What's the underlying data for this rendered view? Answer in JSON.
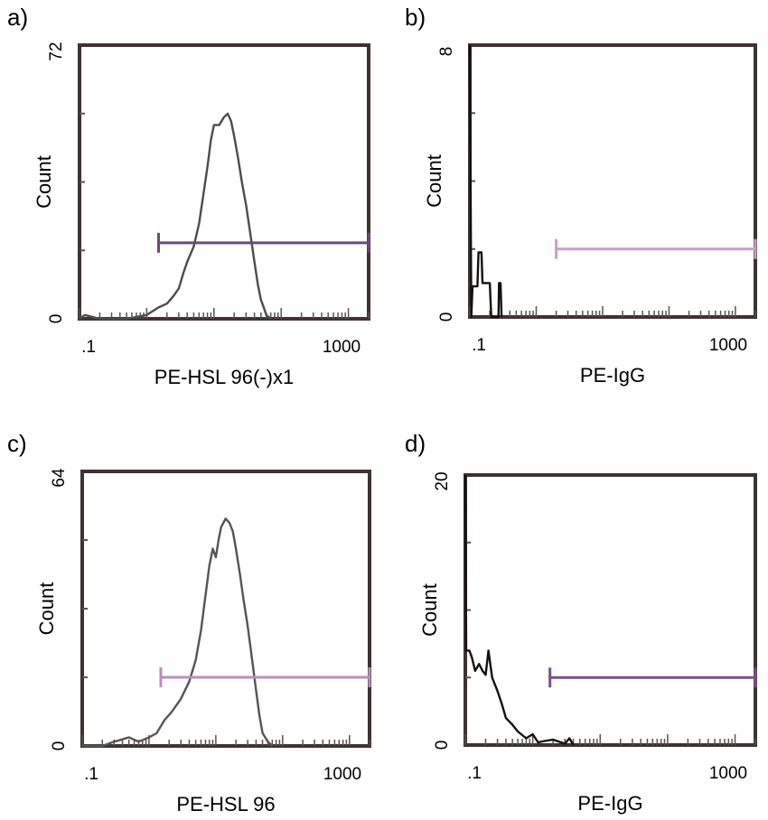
{
  "chart_data": [
    {
      "panel": "a)",
      "type": "histogram",
      "xlabel": "PE-HSL 96(-)x1",
      "ylabel": "Count",
      "x_scale": "log",
      "x_tick_labels": [
        ".1",
        "1000"
      ],
      "y_tick_labels": [
        "0",
        "72"
      ],
      "ylim": [
        0,
        72
      ],
      "gate": {
        "x": [
          1.5,
          2000
        ],
        "y": 20,
        "color": "#6b4a78"
      },
      "hist_color": "#4d4d4d",
      "series": [
        {
          "points": [
            [
              0.1,
              0
            ],
            [
              0.12,
              1
            ],
            [
              0.2,
              0
            ],
            [
              0.5,
              0
            ],
            [
              1,
              1
            ],
            [
              1.5,
              3
            ],
            [
              2,
              4
            ],
            [
              2.5,
              6
            ],
            [
              3,
              8
            ],
            [
              3.5,
              12
            ],
            [
              4,
              15
            ],
            [
              5,
              19
            ],
            [
              6,
              25
            ],
            [
              7,
              33
            ],
            [
              8,
              40
            ],
            [
              9,
              47
            ],
            [
              10,
              51
            ],
            [
              12,
              51
            ],
            [
              14,
              53
            ],
            [
              16,
              54
            ],
            [
              18,
              52
            ],
            [
              20,
              48
            ],
            [
              23,
              42
            ],
            [
              26,
              36
            ],
            [
              30,
              30
            ],
            [
              35,
              22
            ],
            [
              40,
              15
            ],
            [
              45,
              9
            ],
            [
              50,
              5
            ],
            [
              55,
              3
            ],
            [
              60,
              1
            ],
            [
              70,
              0
            ]
          ]
        }
      ]
    },
    {
      "panel": "b)",
      "type": "histogram",
      "xlabel": "PE-IgG",
      "ylabel": "Count",
      "x_scale": "log",
      "x_tick_labels": [
        ".1",
        "1000"
      ],
      "y_tick_labels": [
        "0",
        "8"
      ],
      "ylim": [
        0,
        8
      ],
      "gate": {
        "x": [
          2,
          2000
        ],
        "y": 2,
        "color": "#c99fc6"
      },
      "hist_color": "#111111",
      "series": [
        {
          "points": [
            [
              0.1,
              8
            ],
            [
              0.105,
              0
            ],
            [
              0.11,
              0.9
            ],
            [
              0.13,
              0.9
            ],
            [
              0.135,
              1.9
            ],
            [
              0.15,
              1.9
            ],
            [
              0.155,
              1
            ],
            [
              0.2,
              1
            ],
            [
              0.21,
              0
            ],
            [
              0.27,
              0
            ],
            [
              0.275,
              1
            ],
            [
              0.29,
              1
            ],
            [
              0.3,
              0
            ]
          ]
        }
      ]
    },
    {
      "panel": "c)",
      "type": "histogram",
      "xlabel": "PE-HSL 96",
      "ylabel": "Count",
      "x_scale": "log",
      "x_tick_labels": [
        ".1",
        "1000"
      ],
      "y_tick_labels": [
        "0",
        "64"
      ],
      "ylim": [
        0,
        64
      ],
      "gate": {
        "x": [
          1.5,
          2000
        ],
        "y": 16,
        "color": "#b990b8"
      },
      "hist_color": "#555555",
      "series": [
        {
          "points": [
            [
              0.1,
              0
            ],
            [
              0.2,
              0
            ],
            [
              0.3,
              1
            ],
            [
              0.5,
              2
            ],
            [
              0.7,
              1
            ],
            [
              1,
              2
            ],
            [
              1.3,
              3
            ],
            [
              1.7,
              6
            ],
            [
              2.2,
              8
            ],
            [
              3,
              11
            ],
            [
              4,
              15
            ],
            [
              5,
              20
            ],
            [
              6,
              27
            ],
            [
              7,
              35
            ],
            [
              8,
              42
            ],
            [
              9,
              46
            ],
            [
              10,
              44
            ],
            [
              11,
              48
            ],
            [
              12,
              51
            ],
            [
              14,
              53
            ],
            [
              16,
              52
            ],
            [
              18,
              50
            ],
            [
              20,
              46
            ],
            [
              23,
              40
            ],
            [
              26,
              34
            ],
            [
              30,
              28
            ],
            [
              35,
              20
            ],
            [
              40,
              13
            ],
            [
              45,
              7
            ],
            [
              50,
              3
            ],
            [
              60,
              1
            ],
            [
              70,
              0
            ]
          ]
        }
      ]
    },
    {
      "panel": "d)",
      "type": "histogram",
      "xlabel": "PE-IgG",
      "ylabel": "Count",
      "x_scale": "log",
      "x_tick_labels": [
        ".1",
        "1000"
      ],
      "y_tick_labels": [
        "0",
        "20"
      ],
      "ylim": [
        0,
        20
      ],
      "gate": {
        "x": [
          1.8,
          2000
        ],
        "y": 5,
        "color": "#7a4f8a"
      },
      "hist_color": "#111111",
      "series": [
        {
          "points": [
            [
              0.1,
              20
            ],
            [
              0.103,
              7
            ],
            [
              0.115,
              7
            ],
            [
              0.125,
              6.5
            ],
            [
              0.14,
              5.5
            ],
            [
              0.16,
              6
            ],
            [
              0.18,
              5.5
            ],
            [
              0.2,
              5.2
            ],
            [
              0.22,
              7
            ],
            [
              0.25,
              5
            ],
            [
              0.3,
              4
            ],
            [
              0.35,
              3
            ],
            [
              0.4,
              2
            ],
            [
              0.5,
              1.5
            ],
            [
              0.6,
              1
            ],
            [
              0.8,
              0.5
            ],
            [
              1,
              0.8
            ],
            [
              1.2,
              0.2
            ],
            [
              1.5,
              0.3
            ],
            [
              2,
              0.4
            ],
            [
              3,
              0.1
            ],
            [
              3.5,
              0.5
            ],
            [
              4,
              0
            ]
          ]
        }
      ]
    }
  ]
}
